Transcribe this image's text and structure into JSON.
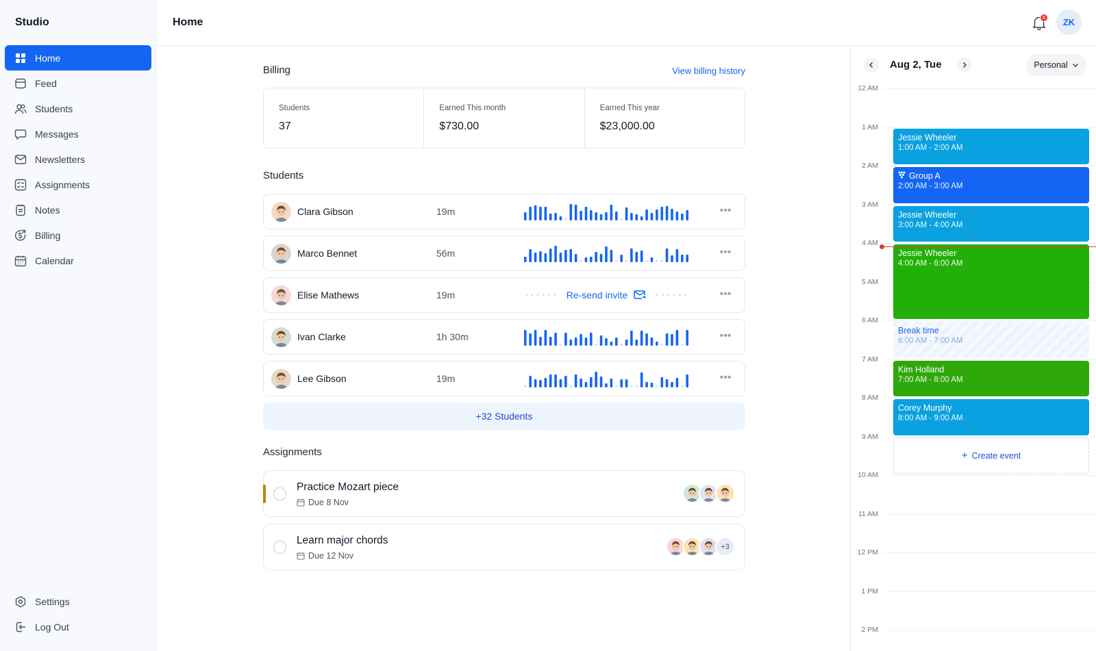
{
  "app": {
    "name": "Studio"
  },
  "sidebar": {
    "items": [
      {
        "label": "Home",
        "icon": "grid-icon"
      },
      {
        "label": "Feed",
        "icon": "feed-icon"
      },
      {
        "label": "Students",
        "icon": "users-icon"
      },
      {
        "label": "Messages",
        "icon": "chat-icon"
      },
      {
        "label": "Newsletters",
        "icon": "mail-icon"
      },
      {
        "label": "Assignments",
        "icon": "checklist-icon"
      },
      {
        "label": "Notes",
        "icon": "note-icon"
      },
      {
        "label": "Billing",
        "icon": "dollar-icon"
      },
      {
        "label": "Calendar",
        "icon": "calendar-icon"
      }
    ],
    "bottom": [
      {
        "label": "Settings",
        "icon": "settings-icon"
      },
      {
        "label": "Log Out",
        "icon": "logout-icon"
      }
    ]
  },
  "header": {
    "title": "Home",
    "notifications_count": "5",
    "user_initials": "ZK"
  },
  "billing": {
    "title": "Billing",
    "link": "View billing history",
    "stats": [
      {
        "label": "Students",
        "value": "37"
      },
      {
        "label": "Earned This month",
        "value": "$730.00"
      },
      {
        "label": "Earned This year",
        "value": "$23,000.00"
      }
    ]
  },
  "students": {
    "title": "Students",
    "rows": [
      {
        "name": "Clara Gibson",
        "time": "19m",
        "avatar_color": "#f3d9c4"
      },
      {
        "name": "Marco Bennet",
        "time": "56m",
        "avatar_color": "#d9d4cf"
      },
      {
        "name": "Elise Mathews",
        "time": "19m",
        "avatar_color": "#f6d8d6",
        "resend": "Re-send invite"
      },
      {
        "name": "Ivan Clarke",
        "time": "1h 30m",
        "avatar_color": "#d5ddd0"
      },
      {
        "name": "Lee Gibson",
        "time": "19m",
        "avatar_color": "#e7d7c8"
      }
    ],
    "more": "+32 Students"
  },
  "assignments": {
    "title": "Assignments",
    "rows": [
      {
        "title": "Practice Mozart piece",
        "due": "Due 8 Nov",
        "accent": "#b8860b",
        "avatars": [
          "#cfe8d6",
          "#dde4f5",
          "#fbe3b2"
        ]
      },
      {
        "title": "Learn major chords",
        "due": "Due 12 Nov",
        "avatars": [
          "#f9d3dc",
          "#fbe3b2",
          "#e3ddf3"
        ],
        "more": "+3"
      }
    ]
  },
  "calendar": {
    "date": "Aug 2, Tue",
    "view": "Personal",
    "hours": [
      "12 AM",
      "1 AM",
      "2 AM",
      "3 AM",
      "4 AM",
      "5 AM",
      "6 AM",
      "7 AM",
      "8 AM",
      "9 AM",
      "10 AM",
      "11 AM",
      "12 PM",
      "1 PM",
      "2 PM"
    ],
    "events": [
      {
        "title": "Jessie Wheeler",
        "time": "1:00 AM - 2:00 AM",
        "start": 1,
        "end": 2,
        "color": "#0aa1e0"
      },
      {
        "title": "Group A",
        "time": "2:00 AM - 3:00 AM",
        "start": 2,
        "end": 3,
        "color": "#1565f5",
        "icon": "group-icon"
      },
      {
        "title": "Jessie Wheeler",
        "time": "3:00 AM - 4:00 AM",
        "start": 3,
        "end": 4,
        "color": "#0aa1e0"
      },
      {
        "title": "Jessie Wheeler",
        "time": "4:00 AM - 6:00 AM",
        "start": 4,
        "end": 6,
        "color": "#22b008"
      },
      {
        "title": "Break time",
        "time": "6:00 AM - 7:00 AM",
        "start": 6,
        "end": 7,
        "break": true
      },
      {
        "title": "Kim Holland",
        "time": "7:00 AM - 8:00 AM",
        "start": 7,
        "end": 8,
        "color": "#2ea80b"
      },
      {
        "title": "Corey Murphy",
        "time": "8:00 AM - 9:00 AM",
        "start": 8,
        "end": 9,
        "color": "#0aa1e0"
      }
    ],
    "now_hour": 4.08,
    "create": "Create event"
  },
  "colors": {
    "accent": "#1565f5",
    "bars": "#1565f5",
    "now": "#e23b3b"
  }
}
